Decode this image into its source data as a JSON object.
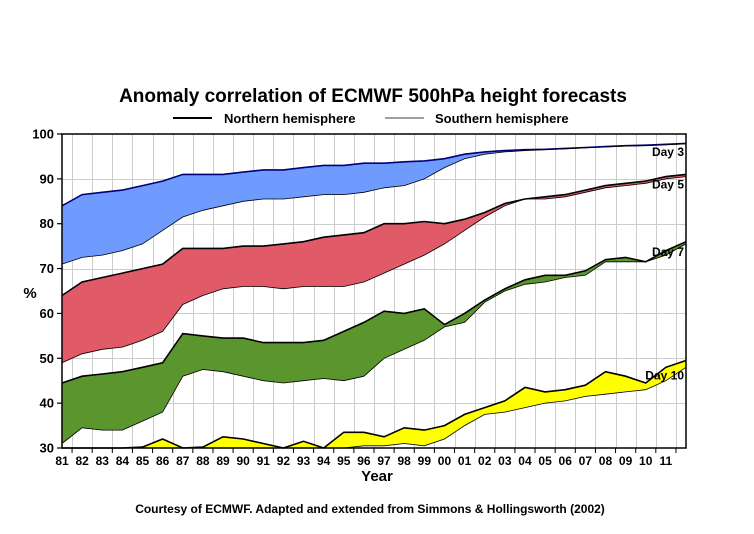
{
  "chart_data": {
    "type": "area",
    "title": "Anomaly correlation of ECMWF 500hPa height forecasts",
    "xlabel": "Year",
    "ylabel": "%",
    "credit": "Courtesy of ECMWF. Adapted and extended from Simmons & Hollingsworth (2002)",
    "legend": {
      "placement": "top",
      "entries": [
        {
          "label": "Northern hemisphere",
          "line": "thick"
        },
        {
          "label": "Southern hemisphere",
          "line": "thin"
        }
      ]
    },
    "ylim": [
      30,
      100
    ],
    "yticks": [
      30,
      40,
      50,
      60,
      70,
      80,
      90,
      100
    ],
    "xlim": [
      1980.5,
      2011.5
    ],
    "xtick_labels": [
      "81",
      "82",
      "83",
      "84",
      "85",
      "86",
      "87",
      "88",
      "89",
      "90",
      "91",
      "92",
      "93",
      "94",
      "95",
      "96",
      "97",
      "98",
      "99",
      "00",
      "01",
      "02",
      "03",
      "04",
      "05",
      "06",
      "07",
      "08",
      "09",
      "10",
      "11"
    ],
    "grid": true,
    "x": [
      1980.5,
      1981.5,
      1982.5,
      1983.5,
      1984.5,
      1985.5,
      1986.5,
      1987.5,
      1988.5,
      1989.5,
      1990.5,
      1991.5,
      1992.5,
      1993.5,
      1994.5,
      1995.5,
      1996.5,
      1997.5,
      1998.5,
      1999.5,
      2000.5,
      2001.5,
      2002.5,
      2003.5,
      2004.5,
      2005.5,
      2006.5,
      2007.5,
      2008.5,
      2009.5,
      2010.5,
      2011.5
    ],
    "series": [
      {
        "name": "Day 3",
        "color": "#6f9bff",
        "northern": [
          84,
          86.5,
          87,
          87.5,
          88.5,
          89.5,
          91,
          91,
          91,
          91.5,
          92,
          92,
          92.5,
          93,
          93,
          93.5,
          93.5,
          93.8,
          94,
          94.5,
          95.5,
          96,
          96.3,
          96.5,
          96.6,
          96.8,
          97,
          97.2,
          97.4,
          97.5,
          97.7,
          97.9
        ],
        "southern": [
          71,
          72.5,
          73,
          74,
          75.5,
          78.5,
          81.5,
          83,
          84,
          85,
          85.5,
          85.5,
          86,
          86.5,
          86.5,
          87,
          88,
          88.5,
          90,
          92.5,
          94.5,
          95.5,
          96,
          96.3,
          96.5,
          96.7,
          96.9,
          97.1,
          97.3,
          97.4,
          97.6,
          97.8
        ]
      },
      {
        "name": "Day 5",
        "color": "#e05a68",
        "northern": [
          64,
          67,
          68,
          69,
          70,
          71,
          74.5,
          74.5,
          74.5,
          75,
          75,
          75.5,
          76,
          77,
          77.5,
          78,
          80,
          80,
          80.5,
          80,
          81,
          82.5,
          84.5,
          85.5,
          86,
          86.5,
          87.5,
          88.5,
          89,
          89.5,
          90.5,
          91
        ],
        "southern": [
          49,
          51,
          52,
          52.5,
          54,
          56,
          62,
          64,
          65.5,
          66,
          66,
          65.5,
          66,
          66,
          66,
          67,
          69,
          71,
          73,
          75.5,
          78.5,
          81.5,
          84,
          85.5,
          85.5,
          86,
          87,
          88,
          88.5,
          89,
          90,
          90.5
        ]
      },
      {
        "name": "Day 7",
        "color": "#5a962d",
        "northern": [
          44.5,
          46,
          46.5,
          47,
          48,
          49,
          55.5,
          55,
          54.5,
          54.5,
          53.5,
          53.5,
          53.5,
          54,
          56,
          58,
          60.5,
          60,
          61,
          57.5,
          60,
          63,
          65.5,
          67.5,
          68.5,
          68.5,
          69.5,
          72,
          72.5,
          71.5,
          74,
          76
        ],
        "southern": [
          31,
          34.5,
          34,
          34,
          36,
          38,
          46,
          47.5,
          47,
          46,
          45,
          44.5,
          45,
          45.5,
          45,
          46,
          50,
          52,
          54,
          57,
          58,
          62.5,
          65,
          66.5,
          67,
          68,
          68.5,
          71.5,
          71.5,
          71.5,
          73,
          75.5
        ]
      },
      {
        "name": "Day 10",
        "color": "#ffff00",
        "northern": [
          29.8,
          29.8,
          29.8,
          29.8,
          30.2,
          32,
          29.8,
          30.2,
          32.5,
          32,
          31,
          29.8,
          31.5,
          29.8,
          33.5,
          33.5,
          32.5,
          34.5,
          34,
          35,
          37.5,
          39,
          40.5,
          43.5,
          42.5,
          43,
          44,
          47,
          46,
          44.5,
          48,
          49.5
        ],
        "southern": [
          29.8,
          29.8,
          29.8,
          29.8,
          29.8,
          29.8,
          29.8,
          29.8,
          29.8,
          30,
          29.8,
          29.8,
          29.8,
          29.8,
          30,
          30.5,
          30.5,
          31,
          30.5,
          32,
          35,
          37.5,
          38,
          39,
          40,
          40.5,
          41.5,
          42,
          42.5,
          43,
          45,
          48
        ]
      }
    ]
  }
}
